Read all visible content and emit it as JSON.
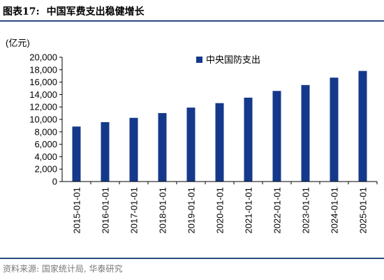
{
  "header": {
    "label": "图表17:",
    "title": "中国军费支出稳健增长"
  },
  "footer": {
    "source": "资料来源: 国家统计局, 华泰研究"
  },
  "colors": {
    "bar": "#15398a",
    "rule": "#2b4a7d"
  },
  "chart_data": {
    "type": "bar",
    "title": "",
    "xlabel": "",
    "ylabel": "(亿元)",
    "ylim": [
      0,
      20000
    ],
    "yticks": [
      0,
      2000,
      4000,
      6000,
      8000,
      10000,
      12000,
      14000,
      16000,
      18000,
      20000
    ],
    "ytick_labels": [
      "0",
      "2,000",
      "4,000",
      "6,000",
      "8,000",
      "10,000",
      "12,000",
      "14,000",
      "16,000",
      "18,000",
      "20,000"
    ],
    "categories": [
      "2015-01-01",
      "2016-01-01",
      "2017-01-01",
      "2018-01-01",
      "2019-01-01",
      "2020-01-01",
      "2021-01-01",
      "2022-01-01",
      "2023-01-01",
      "2024-01-01",
      "2025-01-01"
    ],
    "series": [
      {
        "name": "中央国防支出",
        "values": [
          8850,
          9560,
          10250,
          11020,
          11900,
          12620,
          13500,
          14580,
          15530,
          16720,
          17800
        ]
      }
    ],
    "grid": false,
    "legend": "top-right"
  }
}
